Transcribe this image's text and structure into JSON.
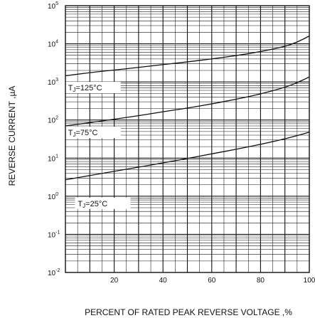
{
  "chart_data": {
    "type": "line",
    "title": "",
    "xlabel": "PERCENT OF RATED PEAK REVERSE VOLTAGE ,%",
    "ylabel": "REVERSE CURRENT ,µA",
    "xlim": [
      0,
      100
    ],
    "ylim": [
      0.01,
      100000
    ],
    "yscale": "log",
    "grid": true,
    "x_ticks": [
      {
        "value": 20,
        "label": "20"
      },
      {
        "value": 40,
        "label": "40"
      },
      {
        "value": 60,
        "label": "60"
      },
      {
        "value": 80,
        "label": "80"
      },
      {
        "value": 100,
        "label": "100"
      }
    ],
    "y_ticks": [
      {
        "value": 0.01,
        "base": "10",
        "exp": "-2"
      },
      {
        "value": 0.1,
        "base": "10",
        "exp": "-1"
      },
      {
        "value": 1,
        "base": "10",
        "exp": "0"
      },
      {
        "value": 10,
        "base": "10",
        "exp": "1"
      },
      {
        "value": 100,
        "base": "10",
        "exp": "2"
      },
      {
        "value": 1000,
        "base": "10",
        "exp": "3"
      },
      {
        "value": 10000,
        "base": "10",
        "exp": "4"
      },
      {
        "value": 100000,
        "base": "10",
        "exp": "5"
      }
    ],
    "series": [
      {
        "name": "TJ=125°C",
        "x": [
          0,
          10,
          20,
          30,
          40,
          50,
          60,
          70,
          80,
          90,
          95,
          100
        ],
        "y": [
          1450,
          1750,
          2050,
          2400,
          2850,
          3350,
          4000,
          4900,
          6200,
          8500,
          11000,
          16000
        ]
      },
      {
        "name": "TJ=75°C",
        "x": [
          0,
          10,
          20,
          30,
          40,
          50,
          60,
          70,
          80,
          90,
          95,
          100
        ],
        "y": [
          70,
          85,
          105,
          130,
          165,
          205,
          265,
          350,
          480,
          720,
          950,
          1350
        ]
      },
      {
        "name": "TJ=25°C",
        "x": [
          0,
          10,
          20,
          30,
          40,
          50,
          60,
          70,
          80,
          90,
          95,
          100
        ],
        "y": [
          2.7,
          3.5,
          4.5,
          5.8,
          7.5,
          9.8,
          13,
          17,
          23,
          32,
          39,
          48
        ]
      }
    ],
    "series_labels": [
      {
        "series": 0,
        "sub": "J",
        "rest": "=125°C",
        "at_x": 0.5,
        "at_y": 600
      },
      {
        "series": 1,
        "sub": "J",
        "rest": "=75°C",
        "at_x": 0.5,
        "at_y": 40
      },
      {
        "series": 2,
        "sub": "J",
        "rest": "=25°C",
        "at_x": 4.5,
        "at_y": 0.55
      }
    ]
  }
}
